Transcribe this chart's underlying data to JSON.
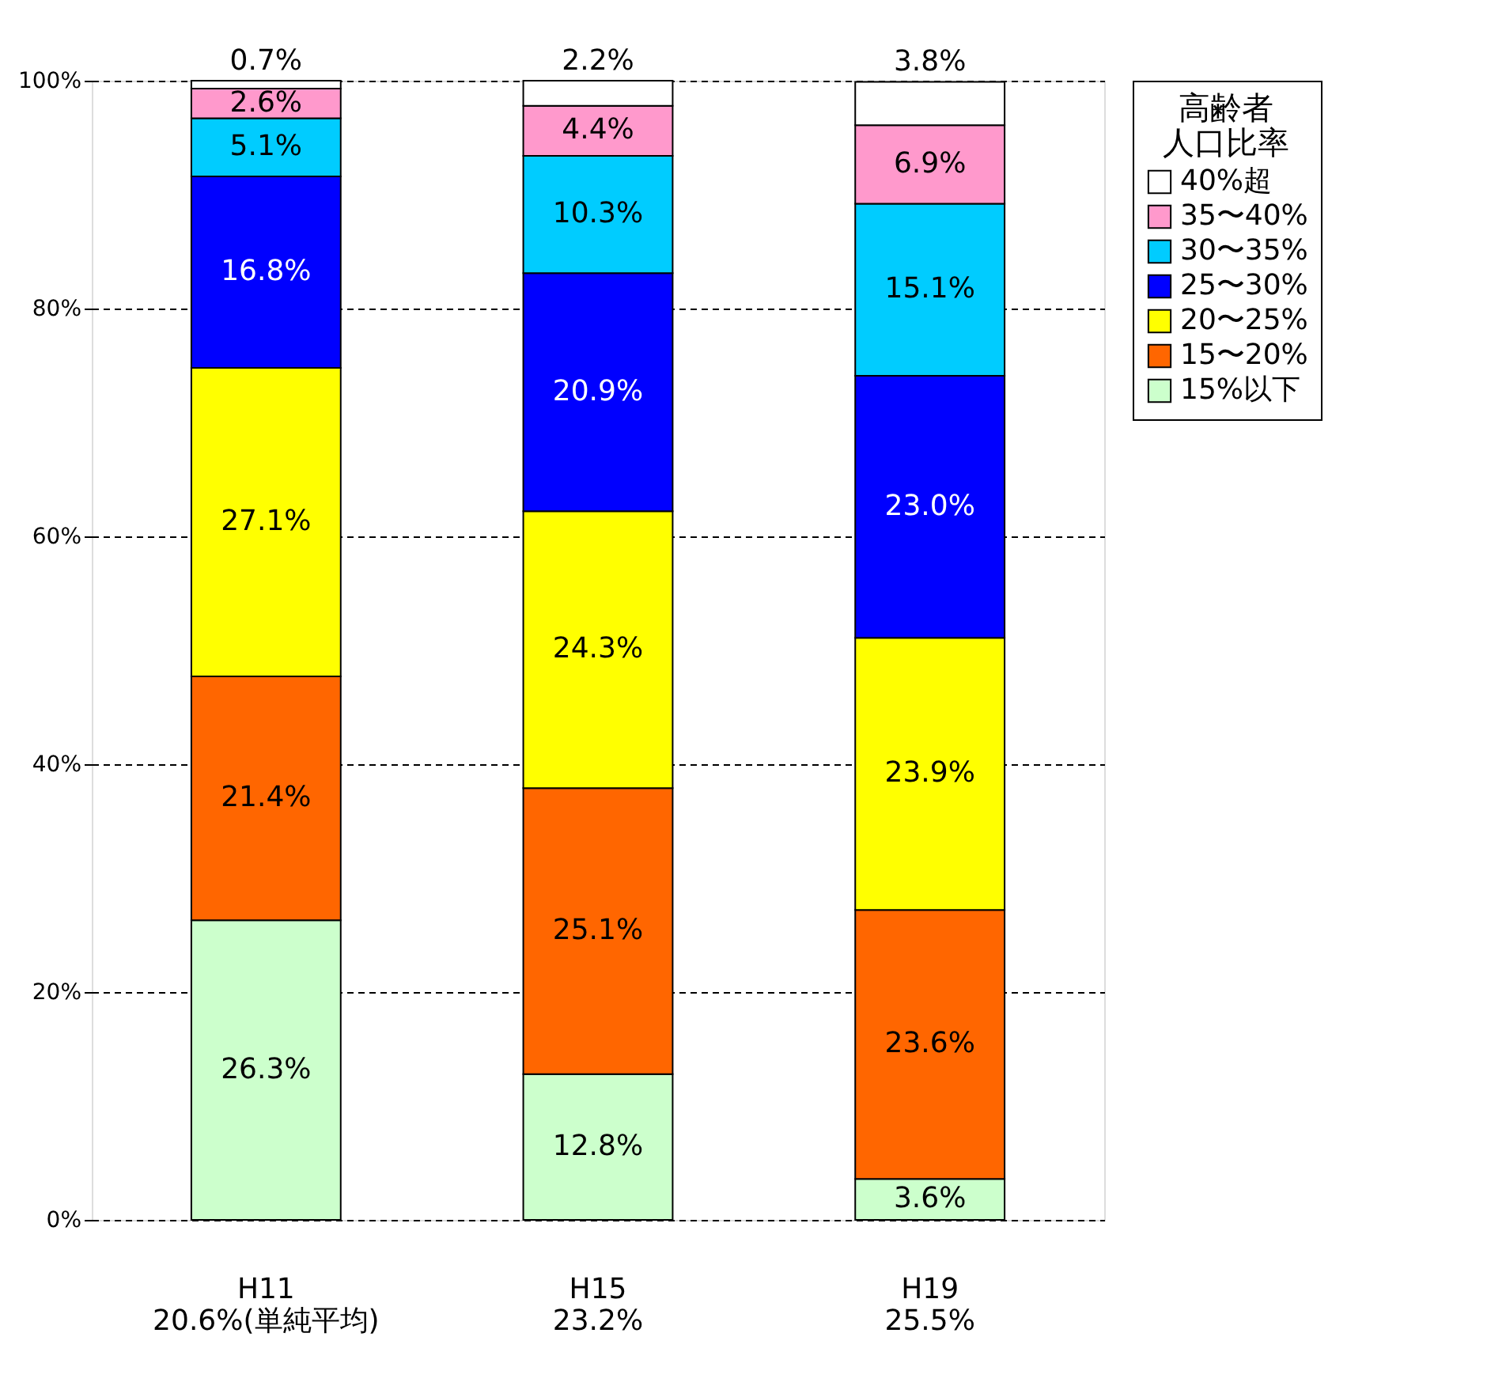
{
  "chart_data": {
    "type": "bar",
    "stacked": true,
    "categories": [
      "H11\n20.6%(単純平均)",
      "H15\n23.2%",
      "H19\n25.5%"
    ],
    "series": [
      {
        "name": "15%以下",
        "color": "#ccffcc",
        "values": [
          26.3,
          12.8,
          3.6
        ],
        "value_labels": [
          "26.3%",
          "12.8%",
          "3.6%"
        ]
      },
      {
        "name": "15〜20%",
        "color": "#ff6600",
        "values": [
          21.4,
          25.1,
          23.6
        ],
        "value_labels": [
          "21.4%",
          "25.1%",
          "23.6%"
        ]
      },
      {
        "name": "20〜25%",
        "color": "#ffff00",
        "values": [
          27.1,
          24.3,
          23.9
        ],
        "value_labels": [
          "27.1%",
          "24.3%",
          "23.9%"
        ]
      },
      {
        "name": "25〜30%",
        "color": "#0000ff",
        "values": [
          16.8,
          20.9,
          23.0
        ],
        "value_labels": [
          "16.8%",
          "20.9%",
          "23.0%"
        ]
      },
      {
        "name": "30〜35%",
        "color": "#00ccff",
        "values": [
          5.1,
          10.3,
          15.1
        ],
        "value_labels": [
          "5.1%",
          "10.3%",
          "15.1%"
        ]
      },
      {
        "name": "35〜40%",
        "color": "#ff99cc",
        "values": [
          2.6,
          4.4,
          6.9
        ],
        "value_labels": [
          "2.6%",
          "4.4%",
          "6.9%"
        ]
      },
      {
        "name": "40%超",
        "color": "#ffffff",
        "values": [
          0.7,
          2.2,
          3.8
        ],
        "value_labels": [
          "0.7%",
          "2.2%",
          "3.8%"
        ]
      }
    ],
    "legend_title": "高齢者人口比率",
    "legend": "right",
    "ylim": [
      0,
      100
    ],
    "yticks": [
      {
        "value": 0,
        "label": "0%"
      },
      {
        "value": 20,
        "label": "20%"
      },
      {
        "value": 40,
        "label": "40%"
      },
      {
        "value": 60,
        "label": "60%"
      },
      {
        "value": 80,
        "label": "80%"
      },
      {
        "value": 100,
        "label": "100%"
      }
    ],
    "grid": "y",
    "line_style": "dashed"
  }
}
